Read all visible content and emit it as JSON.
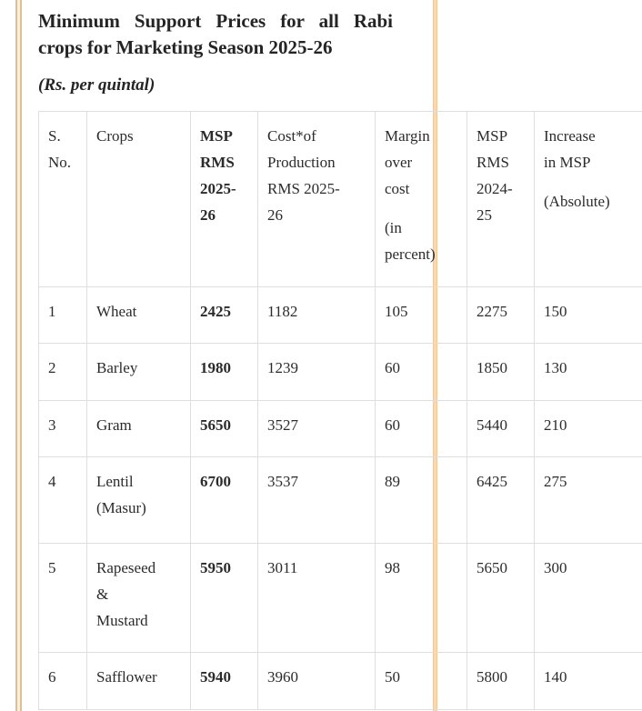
{
  "heading": {
    "title": "Minimum Support Prices for all Rabi crops for Marketing Season 2025-26",
    "subtitle": "(Rs. per quintal)"
  },
  "colors": {
    "text": "#2b2b2b",
    "table_border": "#dedede",
    "left_rule_line": "#ddbf93",
    "left_rule_fill": "#f8f0dd",
    "right_rule_fill": "#f6d9b1"
  },
  "table": {
    "columns": [
      {
        "id": "s_no",
        "paragraphs": [
          "S.\nNo."
        ],
        "bold": false
      },
      {
        "id": "crops",
        "paragraphs": [
          "Crops"
        ],
        "bold": false
      },
      {
        "id": "msp_rms_2025_26",
        "paragraphs": [
          "MSP\nRMS\n2025-\n26"
        ],
        "bold": true
      },
      {
        "id": "cost_of_production",
        "paragraphs": [
          "Cost*of\nProduction\nRMS 2025-\n26"
        ],
        "bold": false
      },
      {
        "id": "margin_over_cost",
        "paragraphs": [
          "Margin\nover\ncost",
          "(in\npercent)"
        ],
        "bold": false
      },
      {
        "id": "msp_rms_2024_25",
        "paragraphs": [
          "MSP\nRMS\n2024-\n25"
        ],
        "bold": false
      },
      {
        "id": "increase_in_msp",
        "paragraphs": [
          "Increase\nin MSP",
          "(Absolute)"
        ],
        "bold": false
      }
    ],
    "rows": [
      [
        "1",
        "Wheat",
        "2425",
        "1182",
        "105",
        "2275",
        "150"
      ],
      [
        "2",
        "Barley",
        "1980",
        "1239",
        "60",
        "1850",
        "130"
      ],
      [
        "3",
        "Gram",
        "5650",
        "3527",
        "60",
        "5440",
        "210"
      ],
      [
        "4",
        "Lentil\n(Masur)",
        "6700",
        "3537",
        "89",
        "6425",
        "275"
      ],
      [
        "5",
        "Rapeseed\n&\nMustard",
        "5950",
        "3011",
        "98",
        "5650",
        "300"
      ],
      [
        "6",
        "Safflower",
        "5940",
        "3960",
        "50",
        "5800",
        "140"
      ]
    ]
  }
}
